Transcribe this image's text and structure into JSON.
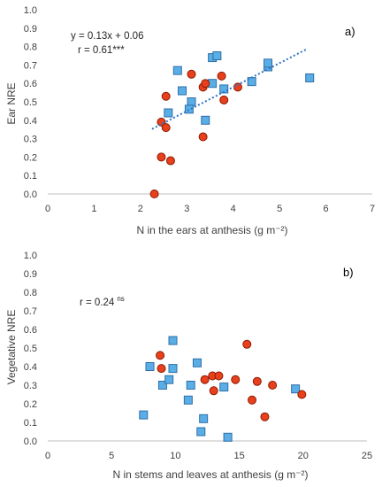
{
  "chart_data": [
    {
      "type": "scatter",
      "panel_label": "a)",
      "xlabel": "N in the ears at anthesis (g m⁻²)",
      "ylabel": "Ear NRE",
      "xlim": [
        0,
        7
      ],
      "ylim": [
        0,
        1.0
      ],
      "xticks": [
        "0",
        "1",
        "2",
        "3",
        "4",
        "5",
        "6",
        "7"
      ],
      "yticks": [
        "0.0",
        "0.1",
        "0.2",
        "0.3",
        "0.4",
        "0.5",
        "0.6",
        "0.7",
        "0.8",
        "0.9",
        "1.0"
      ],
      "grid": false,
      "annotation": {
        "equation": "y = 0.13x + 0.06",
        "r": "r = 0.61***"
      },
      "trendline": {
        "slope": 0.13,
        "intercept": 0.06,
        "x_range": [
          2.25,
          5.6
        ],
        "style": "dotted",
        "color": "#2e75c8"
      },
      "series": [
        {
          "marker": "square",
          "color": "#5aaee6",
          "points": [
            [
              2.8,
              0.67
            ],
            [
              2.9,
              0.56
            ],
            [
              2.6,
              0.44
            ],
            [
              3.1,
              0.5
            ],
            [
              3.05,
              0.46
            ],
            [
              3.4,
              0.4
            ],
            [
              3.55,
              0.74
            ],
            [
              3.65,
              0.75
            ],
            [
              3.55,
              0.6
            ],
            [
              3.8,
              0.57
            ],
            [
              4.4,
              0.61
            ],
            [
              4.75,
              0.69
            ],
            [
              4.75,
              0.71
            ],
            [
              5.65,
              0.63
            ]
          ]
        },
        {
          "marker": "circle",
          "color": "#e8401c",
          "points": [
            [
              2.3,
              0.0
            ],
            [
              2.45,
              0.2
            ],
            [
              2.65,
              0.18
            ],
            [
              2.45,
              0.39
            ],
            [
              2.55,
              0.36
            ],
            [
              2.55,
              0.53
            ],
            [
              3.35,
              0.31
            ],
            [
              3.1,
              0.65
            ],
            [
              3.35,
              0.58
            ],
            [
              3.4,
              0.6
            ],
            [
              3.75,
              0.64
            ],
            [
              3.8,
              0.51
            ],
            [
              4.1,
              0.58
            ]
          ]
        }
      ]
    },
    {
      "type": "scatter",
      "panel_label": "b)",
      "xlabel": "N in stems and leaves at anthesis (g m⁻²)",
      "ylabel": "Vegetative NRE",
      "xlim": [
        0,
        25
      ],
      "ylim": [
        0,
        1.0
      ],
      "xticks": [
        "0",
        "5",
        "10",
        "15",
        "20",
        "25"
      ],
      "yticks": [
        "0.0",
        "0.1",
        "0.2",
        "0.3",
        "0.4",
        "0.5",
        "0.6",
        "0.7",
        "0.8",
        "0.9",
        "1.0"
      ],
      "grid": false,
      "annotation": {
        "r_text": "r = 0.24",
        "r_superscript": "ns"
      },
      "series": [
        {
          "marker": "square",
          "color": "#5aaee6",
          "points": [
            [
              7.5,
              0.14
            ],
            [
              8.0,
              0.4
            ],
            [
              9.0,
              0.3
            ],
            [
              9.5,
              0.33
            ],
            [
              9.8,
              0.39
            ],
            [
              9.8,
              0.54
            ],
            [
              11.0,
              0.22
            ],
            [
              11.2,
              0.3
            ],
            [
              11.7,
              0.42
            ],
            [
              12.0,
              0.05
            ],
            [
              12.2,
              0.12
            ],
            [
              13.8,
              0.29
            ],
            [
              14.1,
              0.02
            ],
            [
              19.4,
              0.28
            ]
          ]
        },
        {
          "marker": "circle",
          "color": "#e8401c",
          "points": [
            [
              8.8,
              0.46
            ],
            [
              8.9,
              0.39
            ],
            [
              12.3,
              0.33
            ],
            [
              12.9,
              0.35
            ],
            [
              13.0,
              0.27
            ],
            [
              13.4,
              0.35
            ],
            [
              14.7,
              0.33
            ],
            [
              15.6,
              0.52
            ],
            [
              16.0,
              0.22
            ],
            [
              16.4,
              0.32
            ],
            [
              17.0,
              0.13
            ],
            [
              17.6,
              0.3
            ],
            [
              19.9,
              0.25
            ]
          ]
        }
      ]
    }
  ]
}
